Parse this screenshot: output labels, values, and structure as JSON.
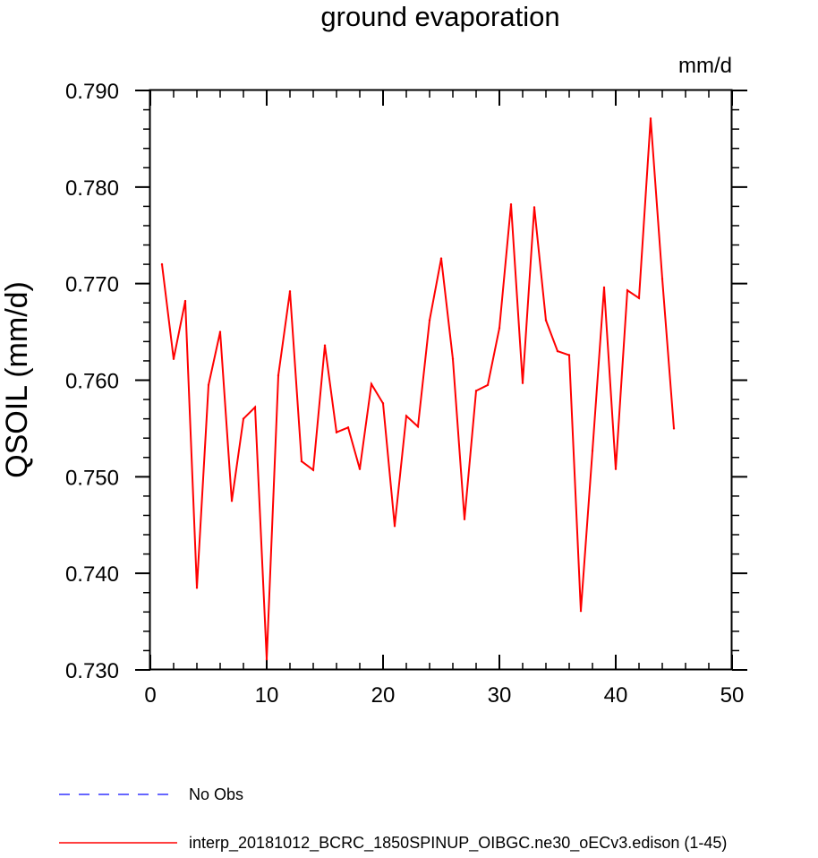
{
  "chart_data": {
    "type": "line",
    "title": "ground evaporation",
    "units_label": "mm/d",
    "xlabel": "",
    "ylabel": "QSOIL  (mm/d)",
    "xlim": [
      0,
      50
    ],
    "ylim": [
      0.73,
      0.79
    ],
    "x_ticks": [
      0,
      10,
      20,
      30,
      40,
      50
    ],
    "x_tick_labels": [
      "0",
      "10",
      "20",
      "30",
      "40",
      "50"
    ],
    "x_minor_step": 2,
    "y_ticks": [
      0.73,
      0.74,
      0.75,
      0.76,
      0.77,
      0.78,
      0.79
    ],
    "y_tick_labels": [
      "0.730",
      "0.740",
      "0.750",
      "0.760",
      "0.770",
      "0.780",
      "0.790"
    ],
    "y_minor_step": 0.002,
    "grid": false,
    "legend_position": "bottom-left",
    "series": [
      {
        "name": "No Obs",
        "color": "#3333ff",
        "dashed": true,
        "x": [],
        "y": []
      },
      {
        "name": "interp_20181012_BCRC_1850SPINUP_OIBGC.ne30_oECv3.edison (1-45)",
        "color": "#ff0000",
        "dashed": false,
        "x": [
          1,
          2,
          3,
          4,
          5,
          6,
          7,
          8,
          9,
          10,
          11,
          12,
          13,
          14,
          15,
          16,
          17,
          18,
          19,
          20,
          21,
          22,
          23,
          24,
          25,
          26,
          27,
          28,
          29,
          30,
          31,
          32,
          33,
          34,
          35,
          36,
          37,
          38,
          39,
          40,
          41,
          42,
          43,
          44,
          45
        ],
        "y": [
          0.772,
          0.7622,
          0.7682,
          0.7385,
          0.7595,
          0.765,
          0.7475,
          0.756,
          0.7572,
          0.7311,
          0.7605,
          0.7692,
          0.7516,
          0.7507,
          0.7636,
          0.7546,
          0.7551,
          0.7508,
          0.7596,
          0.7576,
          0.7449,
          0.7563,
          0.7552,
          0.7662,
          0.7726,
          0.7622,
          0.7456,
          0.7589,
          0.7595,
          0.7654,
          0.7782,
          0.7597,
          0.7779,
          0.7662,
          0.763,
          0.7626,
          0.7361,
          0.7527,
          0.7696,
          0.7508,
          0.7693,
          0.7685,
          0.7871,
          0.7705,
          0.755
        ]
      }
    ]
  }
}
